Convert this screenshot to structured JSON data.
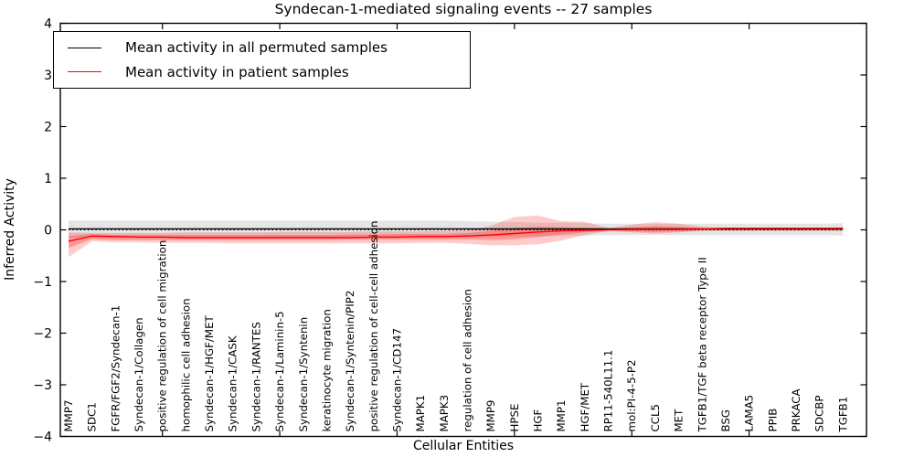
{
  "chart_data": {
    "type": "line",
    "title": "Syndecan-1-mediated signaling events -- 27 samples",
    "xlabel": "Cellular Entities",
    "ylabel": "Inferred Activity",
    "xlim": [
      0.65,
      35.0
    ],
    "ylim": [
      -4,
      4
    ],
    "grid": false,
    "yticks": {
      "values": [
        4,
        3,
        2,
        1,
        0,
        -1,
        -2,
        -3,
        -4
      ],
      "labels": [
        "4",
        "3",
        "2",
        "1",
        "0",
        "−1",
        "−2",
        "−3",
        "−4"
      ]
    },
    "xticks": [
      5,
      10,
      15,
      20,
      25,
      30
    ],
    "categories": [
      "MMP7",
      "SDC1",
      "FGFR/FGF2/Syndecan-1",
      "Syndecan-1/Collagen",
      "positive regulation of cell migration",
      "homophilic cell adhesion",
      "Syndecan-1/HGF/MET",
      "Syndecan-1/CASK",
      "Syndecan-1/RANTES",
      "Syndecan-1/Laminin-5",
      "Syndecan-1/Syntenin",
      "keratinocyte migration",
      "Syndecan-1/Syntenin/PIP2",
      "positive regulation of cell-cell adhesion",
      "Syndecan-1/CD147",
      "MAPK1",
      "MAPK3",
      "regulation of cell adhesion",
      "MMP9",
      "HPSE",
      "HGF",
      "MMP1",
      "HGF/MET",
      "RP11-540L11.1",
      "mol:PI-4-5-P2",
      "CCL5",
      "MET",
      "TGFB1/TGF beta receptor Type II",
      "BSG",
      "LAMA5",
      "PPIB",
      "PRKACA",
      "SDCBP",
      "TGFB1"
    ],
    "legend": {
      "position": "upper left",
      "entries": [
        {
          "label": "Mean activity in all permuted samples",
          "color": "#000000"
        },
        {
          "label": "Mean activity in patient samples",
          "color": "#ff0000"
        }
      ]
    },
    "zero_line": {
      "style": "dotted",
      "y": 0.0,
      "color": "#000000"
    },
    "series": [
      {
        "id": "permuted-mean",
        "name": "Mean activity in all permuted samples",
        "color": "#000000",
        "values": [
          0.02,
          0.02,
          0.02,
          0.02,
          0.02,
          0.02,
          0.02,
          0.02,
          0.02,
          0.02,
          0.02,
          0.02,
          0.02,
          0.02,
          0.02,
          0.02,
          0.02,
          0.02,
          0.02,
          0.02,
          0.02,
          0.02,
          0.02,
          0.02,
          0.02,
          0.02,
          0.02,
          0.02,
          0.02,
          0.02,
          0.02,
          0.02,
          0.02,
          0.02
        ]
      },
      {
        "id": "patient-mean",
        "name": "Mean activity in patient samples",
        "color": "#ff0000",
        "values": [
          -0.22,
          -0.12,
          -0.13,
          -0.14,
          -0.14,
          -0.15,
          -0.15,
          -0.15,
          -0.15,
          -0.15,
          -0.15,
          -0.15,
          -0.15,
          -0.14,
          -0.14,
          -0.13,
          -0.13,
          -0.12,
          -0.1,
          -0.07,
          -0.04,
          -0.02,
          -0.01,
          0.0,
          0.01,
          0.01,
          0.01,
          0.02,
          0.03,
          0.03,
          0.03,
          0.03,
          0.03,
          0.03
        ]
      }
    ],
    "bands": [
      {
        "name": "permuted-range",
        "color": "#000000",
        "opacity": 0.1,
        "low": [
          -0.15,
          -0.15,
          -0.15,
          -0.15,
          -0.15,
          -0.15,
          -0.15,
          -0.15,
          -0.15,
          -0.15,
          -0.15,
          -0.15,
          -0.15,
          -0.15,
          -0.15,
          -0.15,
          -0.15,
          -0.14,
          -0.14,
          -0.13,
          -0.13,
          -0.12,
          -0.11,
          -0.1,
          -0.1,
          -0.1,
          -0.1,
          -0.1,
          -0.1,
          -0.1,
          -0.1,
          -0.1,
          -0.1,
          -0.11
        ],
        "high": [
          0.18,
          0.18,
          0.18,
          0.18,
          0.18,
          0.18,
          0.18,
          0.18,
          0.18,
          0.18,
          0.18,
          0.18,
          0.18,
          0.18,
          0.18,
          0.18,
          0.18,
          0.17,
          0.16,
          0.15,
          0.14,
          0.14,
          0.13,
          0.12,
          0.12,
          0.12,
          0.12,
          0.12,
          0.12,
          0.12,
          0.12,
          0.12,
          0.12,
          0.13
        ]
      },
      {
        "name": "patient-range-outer",
        "color": "#ff0000",
        "opacity": 0.2,
        "low": [
          -0.53,
          -0.22,
          -0.24,
          -0.24,
          -0.25,
          -0.25,
          -0.25,
          -0.26,
          -0.26,
          -0.26,
          -0.26,
          -0.26,
          -0.26,
          -0.26,
          -0.26,
          -0.25,
          -0.25,
          -0.27,
          -0.3,
          -0.3,
          -0.28,
          -0.21,
          -0.1,
          -0.02,
          -0.05,
          -0.07,
          -0.05,
          -0.02,
          -0.02,
          -0.02,
          -0.02,
          -0.02,
          -0.02,
          -0.02
        ],
        "high": [
          -0.05,
          -0.06,
          -0.06,
          -0.06,
          -0.06,
          -0.05,
          -0.05,
          -0.05,
          -0.05,
          -0.04,
          -0.04,
          -0.04,
          -0.04,
          -0.03,
          -0.03,
          -0.03,
          -0.02,
          -0.01,
          0.08,
          0.25,
          0.28,
          0.17,
          0.16,
          0.03,
          0.1,
          0.15,
          0.12,
          0.06,
          0.04,
          0.04,
          0.04,
          0.04,
          0.04,
          0.05
        ]
      },
      {
        "name": "patient-range-inner",
        "color": "#ff0000",
        "opacity": 0.25,
        "low": [
          -0.35,
          -0.18,
          -0.2,
          -0.2,
          -0.2,
          -0.2,
          -0.2,
          -0.2,
          -0.2,
          -0.2,
          -0.2,
          -0.2,
          -0.19,
          -0.19,
          -0.19,
          -0.19,
          -0.19,
          -0.18,
          -0.2,
          -0.18,
          -0.14,
          -0.09,
          -0.05,
          -0.01,
          -0.03,
          -0.04,
          -0.03,
          -0.01,
          -0.01,
          -0.01,
          -0.01,
          -0.01,
          -0.01,
          -0.01
        ],
        "high": [
          -0.12,
          -0.08,
          -0.1,
          -0.1,
          -0.1,
          -0.1,
          -0.1,
          -0.1,
          -0.1,
          -0.1,
          -0.1,
          -0.1,
          -0.09,
          -0.09,
          -0.08,
          -0.08,
          -0.08,
          -0.06,
          -0.02,
          0.04,
          0.06,
          0.05,
          0.04,
          0.02,
          0.05,
          0.07,
          0.06,
          0.03,
          0.03,
          0.03,
          0.03,
          0.03,
          0.03,
          0.03
        ]
      }
    ]
  }
}
